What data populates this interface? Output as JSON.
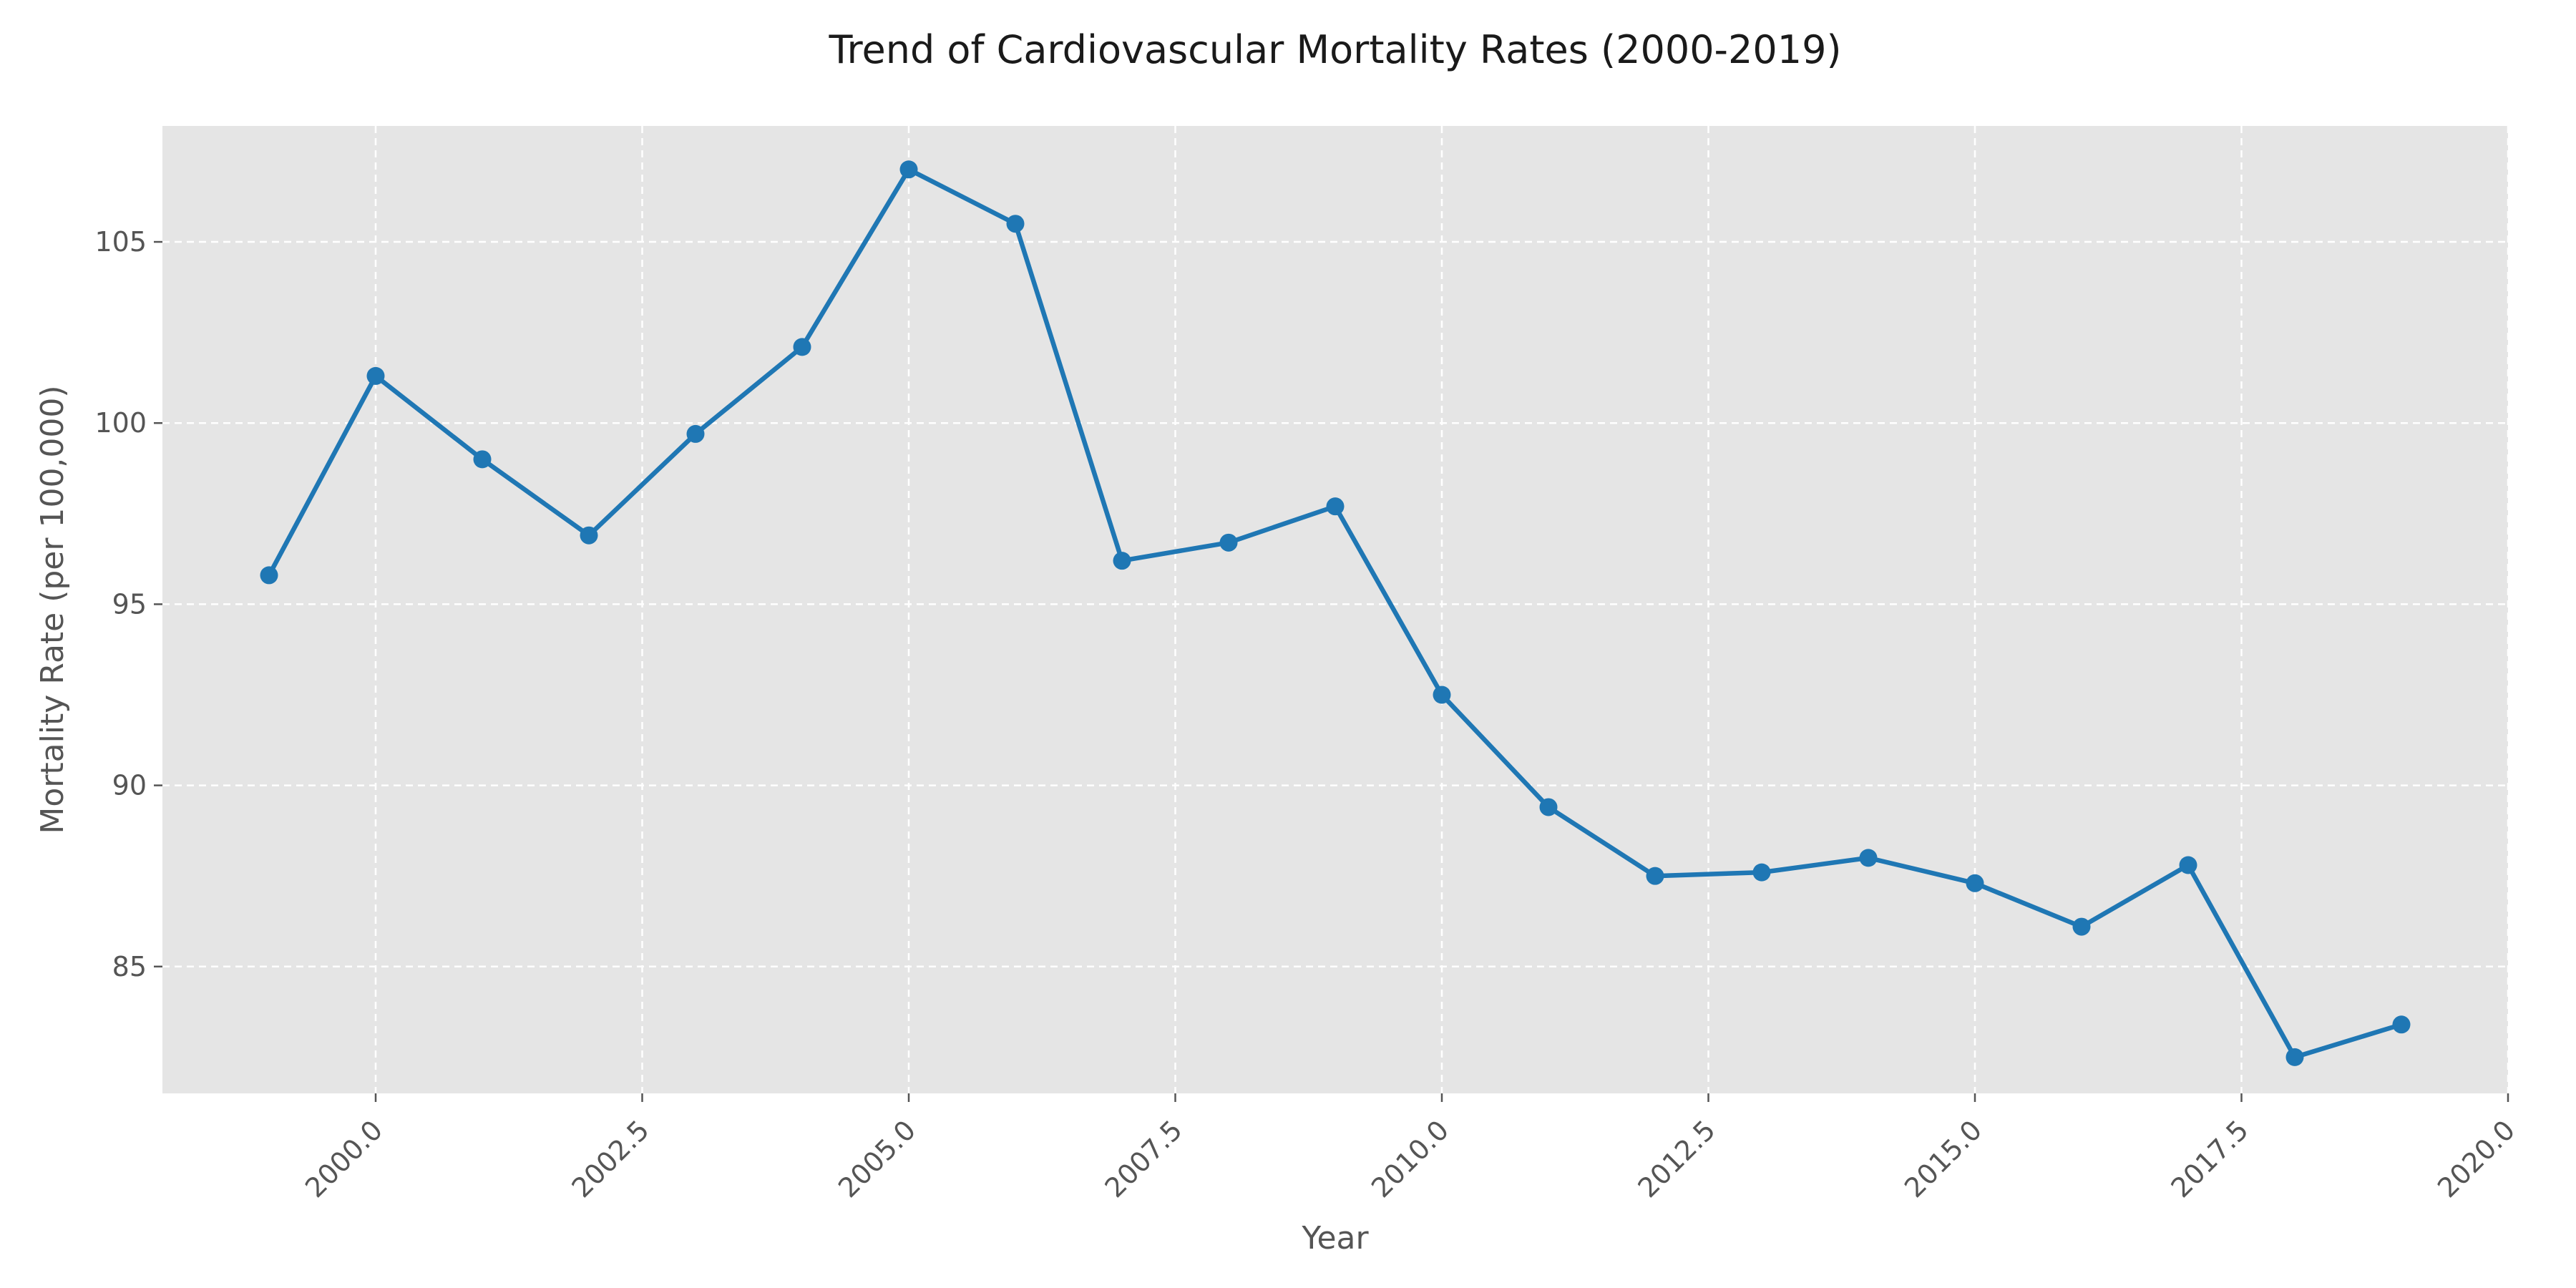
{
  "chart_data": {
    "type": "line",
    "title": "Trend of Cardiovascular Mortality Rates (2000-2019)",
    "xlabel": "Year",
    "ylabel": "Mortality Rate (per 100,000)",
    "xlim": [
      1998.0,
      2020.0
    ],
    "ylim": [
      81.5,
      108.2
    ],
    "xticks": [
      2000.0,
      2002.5,
      2005.0,
      2007.5,
      2010.0,
      2012.5,
      2015.0,
      2017.5,
      2020.0
    ],
    "xtick_labels": [
      "2000.0",
      "2002.5",
      "2005.0",
      "2007.5",
      "2010.0",
      "2012.5",
      "2015.0",
      "2017.5",
      "2020.0"
    ],
    "yticks": [
      85,
      90,
      95,
      100,
      105
    ],
    "ytick_labels": [
      "85",
      "90",
      "95",
      "100",
      "105"
    ],
    "grid": true,
    "legend": "none",
    "series": [
      {
        "color": "#1f77b4",
        "marker": "circle",
        "x": [
          1999,
          2000,
          2001,
          2002,
          2003,
          2004,
          2005,
          2006,
          2007,
          2008,
          2009,
          2010,
          2011,
          2012,
          2013,
          2014,
          2015,
          2016,
          2017,
          2018,
          2019
        ],
        "y": [
          95.8,
          101.3,
          99.0,
          96.9,
          99.7,
          102.1,
          107.0,
          105.5,
          96.2,
          96.7,
          97.7,
          92.5,
          89.4,
          87.5,
          87.6,
          88.0,
          87.3,
          86.1,
          87.8,
          82.5,
          83.4
        ]
      }
    ]
  },
  "colors": {
    "plot_background": "#e5e5e5",
    "grid": "#ffffff",
    "line": "#1f77b4"
  }
}
